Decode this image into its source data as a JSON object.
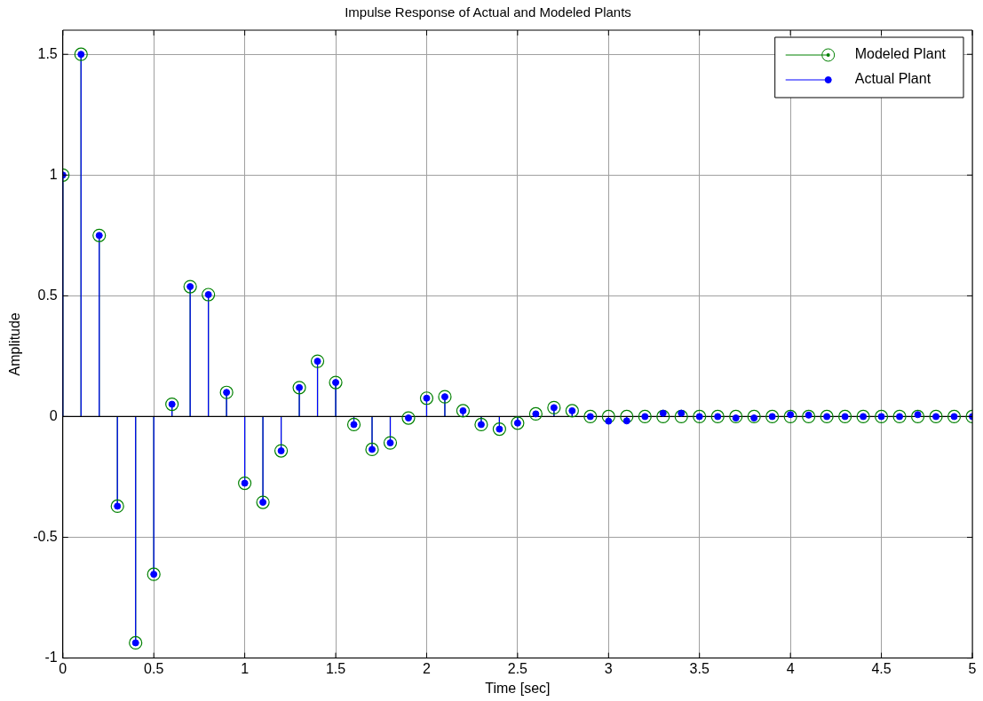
{
  "chart_data": {
    "type": "lollipop",
    "title": "Impulse Response of Actual and Modeled Plants",
    "xlabel": "Time [sec]",
    "ylabel": "Amplitude",
    "x": [
      0,
      0.1,
      0.2,
      0.3,
      0.4,
      0.5,
      0.6,
      0.7,
      0.8,
      0.9,
      1,
      1.1,
      1.2,
      1.3,
      1.4,
      1.5,
      1.6,
      1.7,
      1.8,
      1.9,
      2,
      2.1,
      2.2,
      2.3,
      2.4,
      2.5,
      2.6,
      2.7,
      2.8,
      2.9,
      3,
      3.1,
      3.2,
      3.3,
      3.4,
      3.5,
      3.6,
      3.7,
      3.8,
      3.9,
      4,
      4.1,
      4.2,
      4.3,
      4.4,
      4.5,
      4.6,
      4.7,
      4.8,
      4.9,
      5
    ],
    "series": [
      {
        "name": "Modeled Plant",
        "color": "#008000",
        "marker": "circle",
        "values": [
          1,
          1.5,
          0.75,
          -0.371,
          -0.937,
          -0.653,
          0.051,
          0.538,
          0.505,
          0.1,
          -0.276,
          -0.355,
          -0.142,
          0.12,
          0.229,
          0.141,
          -0.033,
          -0.136,
          -0.109,
          -0.006,
          0.076,
          0.082,
          0.024,
          -0.033,
          -0.052,
          -0.027,
          0.011,
          0.037,
          0.024,
          0,
          0,
          0,
          0,
          0,
          0,
          0,
          0,
          0,
          0,
          0,
          0,
          0,
          0,
          0,
          0,
          0,
          0,
          0,
          0,
          0,
          0
        ]
      },
      {
        "name": "Actual Plant",
        "color": "#0000ff",
        "marker": "circle",
        "values": [
          1,
          1.5,
          0.75,
          -0.371,
          -0.937,
          -0.653,
          0.051,
          0.538,
          0.505,
          0.1,
          -0.276,
          -0.355,
          -0.142,
          0.12,
          0.229,
          0.141,
          -0.033,
          -0.136,
          -0.109,
          -0.006,
          0.076,
          0.082,
          0.024,
          -0.033,
          -0.052,
          -0.027,
          0.011,
          0.037,
          0.024,
          0,
          -0.019,
          -0.018,
          0,
          0.014,
          0.014,
          0,
          0,
          -0.006,
          -0.006,
          0,
          0.008,
          0.006,
          0,
          0,
          0,
          0,
          0,
          0.008,
          0,
          0,
          0
        ]
      }
    ],
    "xlim": [
      0,
      5
    ],
    "xticks": [
      0,
      0.5,
      1,
      1.5,
      2,
      2.5,
      3,
      3.5,
      4,
      4.5,
      5
    ],
    "ylim": [
      -1,
      1.6
    ],
    "yticks": [
      -1,
      -0.5,
      0,
      0.5,
      1,
      1.5
    ],
    "grid": true,
    "legend": "top right"
  }
}
